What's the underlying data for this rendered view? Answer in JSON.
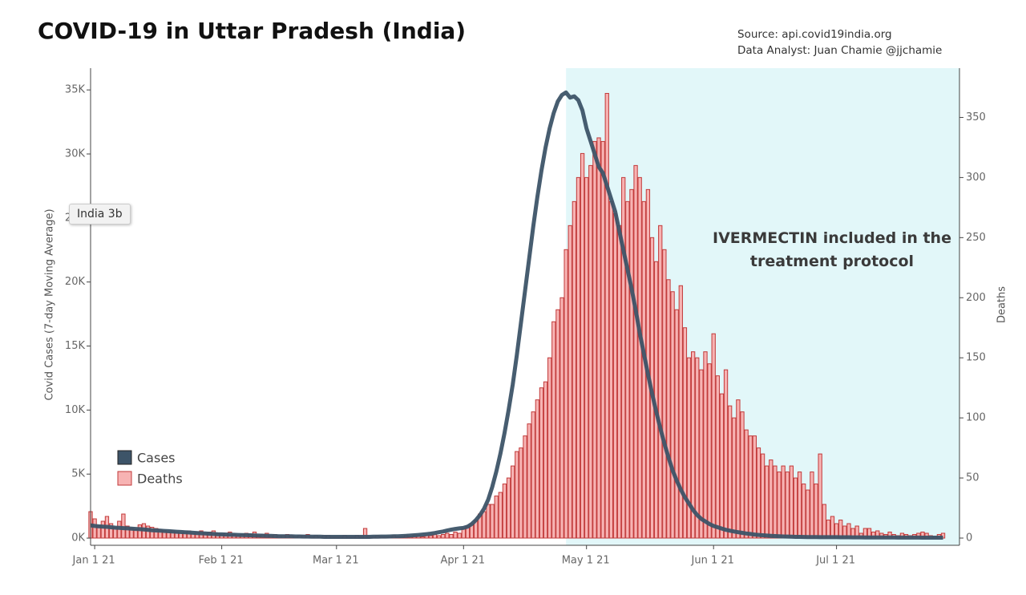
{
  "chart_data": {
    "type": "bar-line",
    "title": "COVID-19 in Uttar Pradesh (India)",
    "source": [
      "Source: api.covid19india.org",
      "Data Analyst:  Juan Chamie @jjchamie"
    ],
    "annotation": "IVERMECTIN included in the treatment protocol",
    "tooltip": "India 3b",
    "ylabel": "Covid Cases (7-day Moving Average)",
    "y2label": "Deaths",
    "highlight": {
      "start": "2021-04-26",
      "end": "2021-07-31",
      "color": "#e2f7f9"
    },
    "xlim": [
      "2020-12-31",
      "2021-07-31"
    ],
    "xticks": [
      {
        "value": "2021-01-01",
        "label": "Jan 1 21"
      },
      {
        "value": "2021-02-01",
        "label": "Feb 1 21"
      },
      {
        "value": "2021-03-01",
        "label": "Mar 1 21"
      },
      {
        "value": "2021-04-01",
        "label": "Apr 1 21"
      },
      {
        "value": "2021-05-01",
        "label": "May 1 21"
      },
      {
        "value": "2021-06-01",
        "label": "Jun 1 21"
      },
      {
        "value": "2021-07-01",
        "label": "Jul 1 21"
      }
    ],
    "ylim": [
      -560,
      36700
    ],
    "yticks": [
      {
        "value": 0,
        "label": "0K"
      },
      {
        "value": 5000,
        "label": "5K"
      },
      {
        "value": 10000,
        "label": "10K"
      },
      {
        "value": 15000,
        "label": "15K"
      },
      {
        "value": 20000,
        "label": "20K"
      },
      {
        "value": 25000,
        "label": "25K"
      },
      {
        "value": 30000,
        "label": "30K"
      },
      {
        "value": 35000,
        "label": "35K"
      }
    ],
    "y2lim": [
      -6,
      391
    ],
    "y2ticks": [
      0,
      50,
      100,
      150,
      200,
      250,
      300,
      350
    ],
    "x": [
      "2020-12-31",
      "2021-01-01",
      "2021-01-02",
      "2021-01-03",
      "2021-01-04",
      "2021-01-05",
      "2021-01-06",
      "2021-01-07",
      "2021-01-08",
      "2021-01-09",
      "2021-01-10",
      "2021-01-11",
      "2021-01-12",
      "2021-01-13",
      "2021-01-14",
      "2021-01-15",
      "2021-01-16",
      "2021-01-17",
      "2021-01-18",
      "2021-01-19",
      "2021-01-20",
      "2021-01-21",
      "2021-01-22",
      "2021-01-23",
      "2021-01-24",
      "2021-01-25",
      "2021-01-26",
      "2021-01-27",
      "2021-01-28",
      "2021-01-29",
      "2021-01-30",
      "2021-01-31",
      "2021-02-01",
      "2021-02-02",
      "2021-02-03",
      "2021-02-04",
      "2021-02-05",
      "2021-02-06",
      "2021-02-07",
      "2021-02-08",
      "2021-02-09",
      "2021-02-10",
      "2021-02-11",
      "2021-02-12",
      "2021-02-13",
      "2021-02-14",
      "2021-02-15",
      "2021-02-16",
      "2021-02-17",
      "2021-02-18",
      "2021-02-19",
      "2021-02-20",
      "2021-02-21",
      "2021-02-22",
      "2021-02-23",
      "2021-02-24",
      "2021-02-25",
      "2021-02-26",
      "2021-02-27",
      "2021-02-28",
      "2021-03-01",
      "2021-03-02",
      "2021-03-03",
      "2021-03-04",
      "2021-03-05",
      "2021-03-06",
      "2021-03-07",
      "2021-03-08",
      "2021-03-09",
      "2021-03-10",
      "2021-03-11",
      "2021-03-12",
      "2021-03-13",
      "2021-03-14",
      "2021-03-15",
      "2021-03-16",
      "2021-03-17",
      "2021-03-18",
      "2021-03-19",
      "2021-03-20",
      "2021-03-21",
      "2021-03-22",
      "2021-03-23",
      "2021-03-24",
      "2021-03-25",
      "2021-03-26",
      "2021-03-27",
      "2021-03-28",
      "2021-03-29",
      "2021-03-30",
      "2021-03-31",
      "2021-04-01",
      "2021-04-02",
      "2021-04-03",
      "2021-04-04",
      "2021-04-05",
      "2021-04-06",
      "2021-04-07",
      "2021-04-08",
      "2021-04-09",
      "2021-04-10",
      "2021-04-11",
      "2021-04-12",
      "2021-04-13",
      "2021-04-14",
      "2021-04-15",
      "2021-04-16",
      "2021-04-17",
      "2021-04-18",
      "2021-04-19",
      "2021-04-20",
      "2021-04-21",
      "2021-04-22",
      "2021-04-23",
      "2021-04-24",
      "2021-04-25",
      "2021-04-26",
      "2021-04-27",
      "2021-04-28",
      "2021-04-29",
      "2021-04-30",
      "2021-05-01",
      "2021-05-02",
      "2021-05-03",
      "2021-05-04",
      "2021-05-05",
      "2021-05-06",
      "2021-05-07",
      "2021-05-08",
      "2021-05-09",
      "2021-05-10",
      "2021-05-11",
      "2021-05-12",
      "2021-05-13",
      "2021-05-14",
      "2021-05-15",
      "2021-05-16",
      "2021-05-17",
      "2021-05-18",
      "2021-05-19",
      "2021-05-20",
      "2021-05-21",
      "2021-05-22",
      "2021-05-23",
      "2021-05-24",
      "2021-05-25",
      "2021-05-26",
      "2021-05-27",
      "2021-05-28",
      "2021-05-29",
      "2021-05-30",
      "2021-05-31",
      "2021-06-01",
      "2021-06-02",
      "2021-06-03",
      "2021-06-04",
      "2021-06-05",
      "2021-06-06",
      "2021-06-07",
      "2021-06-08",
      "2021-06-09",
      "2021-06-10",
      "2021-06-11",
      "2021-06-12",
      "2021-06-13",
      "2021-06-14",
      "2021-06-15",
      "2021-06-16",
      "2021-06-17",
      "2021-06-18",
      "2021-06-19",
      "2021-06-20",
      "2021-06-21",
      "2021-06-22",
      "2021-06-23",
      "2021-06-24",
      "2021-06-25",
      "2021-06-26",
      "2021-06-27",
      "2021-06-28",
      "2021-06-29",
      "2021-06-30",
      "2021-07-01",
      "2021-07-02",
      "2021-07-03",
      "2021-07-04",
      "2021-07-05",
      "2021-07-06",
      "2021-07-07",
      "2021-07-08",
      "2021-07-09",
      "2021-07-10",
      "2021-07-11",
      "2021-07-12",
      "2021-07-13",
      "2021-07-14",
      "2021-07-15",
      "2021-07-16",
      "2021-07-17",
      "2021-07-18",
      "2021-07-19",
      "2021-07-20",
      "2021-07-21",
      "2021-07-22",
      "2021-07-23",
      "2021-07-24",
      "2021-07-25",
      "2021-07-26",
      "2021-07-27"
    ],
    "series": [
      {
        "name": "Cases",
        "type": "line",
        "color": "#3d5468",
        "values": [
          1000,
          950,
          920,
          900,
          880,
          850,
          820,
          800,
          780,
          760,
          740,
          720,
          700,
          680,
          650,
          620,
          600,
          580,
          560,
          540,
          520,
          500,
          480,
          460,
          440,
          420,
          400,
          380,
          360,
          340,
          320,
          300,
          290,
          280,
          270,
          260,
          250,
          240,
          230,
          220,
          210,
          200,
          190,
          180,
          170,
          160,
          150,
          150,
          140,
          140,
          130,
          130,
          120,
          120,
          110,
          110,
          110,
          100,
          100,
          100,
          100,
          100,
          100,
          100,
          100,
          100,
          100,
          100,
          100,
          110,
          110,
          120,
          120,
          130,
          140,
          150,
          160,
          180,
          200,
          220,
          250,
          280,
          310,
          350,
          400,
          460,
          520,
          590,
          660,
          720,
          760,
          800,
          900,
          1100,
          1400,
          1800,
          2300,
          3000,
          4000,
          5200,
          6600,
          8200,
          10000,
          12000,
          14300,
          16800,
          19300,
          21800,
          24300,
          26600,
          28700,
          30500,
          32000,
          33200,
          34100,
          34600,
          34800,
          34400,
          34500,
          34200,
          33400,
          32000,
          31000,
          30000,
          29000,
          28500,
          27500,
          26500,
          25500,
          24000,
          22500,
          21000,
          19500,
          17800,
          16000,
          14400,
          12800,
          11300,
          9900,
          8600,
          7400,
          6300,
          5300,
          4500,
          3800,
          3200,
          2700,
          2200,
          1800,
          1500,
          1300,
          1100,
          950,
          850,
          750,
          650,
          580,
          520,
          460,
          410,
          360,
          320,
          280,
          250,
          220,
          200,
          180,
          160,
          140,
          130,
          120,
          110,
          100,
          95,
          90,
          85,
          80,
          80,
          75,
          75,
          70,
          70,
          70,
          68,
          66,
          64,
          62,
          60,
          58,
          56,
          54,
          52,
          50,
          50,
          48,
          46,
          45,
          44,
          43,
          42,
          41,
          40,
          39,
          38,
          37,
          36,
          35,
          34,
          33
        ]
      },
      {
        "name": "Deaths",
        "type": "bar",
        "axis": "y2",
        "color": "#f7b3b3",
        "edge_color": "#c23a3a",
        "values": [
          22,
          16,
          10,
          14,
          18,
          12,
          9,
          14,
          20,
          10,
          8,
          7,
          11,
          12,
          10,
          9,
          8,
          7,
          6,
          5,
          6,
          5,
          4,
          5,
          6,
          4,
          5,
          6,
          4,
          5,
          6,
          4,
          3,
          4,
          5,
          3,
          2,
          3,
          4,
          3,
          5,
          2,
          3,
          4,
          2,
          3,
          2,
          2,
          3,
          2,
          1,
          2,
          2,
          3,
          1,
          2,
          1,
          2,
          2,
          1,
          1,
          1,
          2,
          1,
          1,
          2,
          1,
          8,
          1,
          1,
          2,
          1,
          1,
          1,
          2,
          1,
          1,
          2,
          1,
          2,
          2,
          1,
          2,
          2,
          3,
          2,
          3,
          4,
          3,
          5,
          4,
          8,
          10,
          12,
          15,
          20,
          22,
          28,
          28,
          35,
          38,
          45,
          50,
          60,
          72,
          75,
          85,
          95,
          105,
          115,
          125,
          130,
          150,
          180,
          190,
          200,
          240,
          260,
          280,
          300,
          320,
          300,
          310,
          330,
          333,
          330,
          370,
          280,
          270,
          260,
          300,
          280,
          290,
          310,
          300,
          280,
          290,
          250,
          230,
          260,
          240,
          215,
          205,
          190,
          210,
          175,
          150,
          155,
          150,
          140,
          155,
          145,
          170,
          135,
          120,
          140,
          110,
          100,
          115,
          105,
          90,
          85,
          85,
          75,
          70,
          60,
          65,
          60,
          55,
          60,
          55,
          60,
          50,
          55,
          45,
          40,
          55,
          45,
          70,
          28,
          15,
          18,
          12,
          15,
          10,
          12,
          8,
          10,
          4,
          8,
          8,
          5,
          6,
          4,
          3,
          5,
          3,
          2,
          4,
          3,
          2,
          3,
          4,
          5,
          4,
          2,
          1,
          3,
          4
        ]
      }
    ],
    "legend": "bottom-left"
  }
}
